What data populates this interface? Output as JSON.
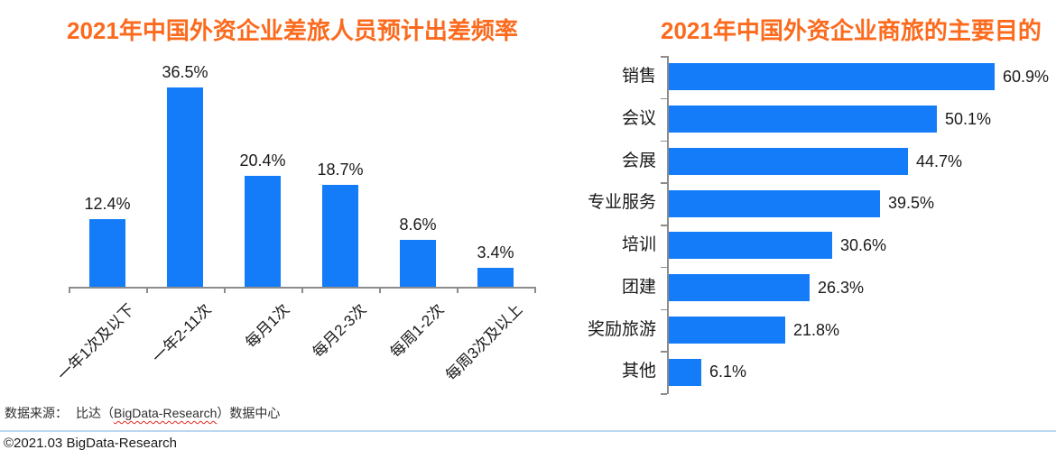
{
  "style": {
    "title_orange": "#FB6A1D",
    "bar_blue": "#147CF9",
    "axis_gray": "#8C8C8C",
    "label_dark": "#1A1A1A",
    "footer_text": "#2E2E2E",
    "divider_blue": "#BCD8F0",
    "spellcheck_red": "#E02B20",
    "background": "#FFFFFF"
  },
  "chart_data": [
    {
      "type": "bar",
      "orientation": "vertical",
      "title": "2021年中国外资企业差旅人员预计出差频率",
      "categories": [
        "一年1次及以下",
        "一年2-11次",
        "每月1次",
        "每月2-3次",
        "每周1-2次",
        "每周3次及以上"
      ],
      "values": [
        12.4,
        36.5,
        20.4,
        18.7,
        8.6,
        3.4
      ],
      "labels": [
        "12.4%",
        "36.5%",
        "20.4%",
        "18.7%",
        "8.6%",
        "3.4%"
      ],
      "ylim": [
        0,
        40
      ],
      "grid": false,
      "legend": "none",
      "xlabel": "",
      "ylabel": ""
    },
    {
      "type": "bar",
      "orientation": "horizontal",
      "title": "2021年中国外资企业商旅的主要目的",
      "categories": [
        "销售",
        "会议",
        "会展",
        "专业服务",
        "培训",
        "团建",
        "奖励旅游",
        "其他"
      ],
      "values": [
        60.9,
        50.1,
        44.7,
        39.5,
        30.6,
        26.3,
        21.8,
        6.1
      ],
      "labels": [
        "60.9%",
        "50.1%",
        "44.7%",
        "39.5%",
        "30.6%",
        "26.3%",
        "21.8%",
        "6.1%"
      ],
      "xlim": [
        0,
        65
      ],
      "grid": false,
      "legend": "none",
      "xlabel": "",
      "ylabel": ""
    }
  ],
  "footer": {
    "source_prefix": "数据来源：",
    "source_open": "比达（",
    "source_brand": "BigData-Research",
    "source_close": "）数据中心",
    "copyright": "©2021.03 BigData-Research"
  }
}
